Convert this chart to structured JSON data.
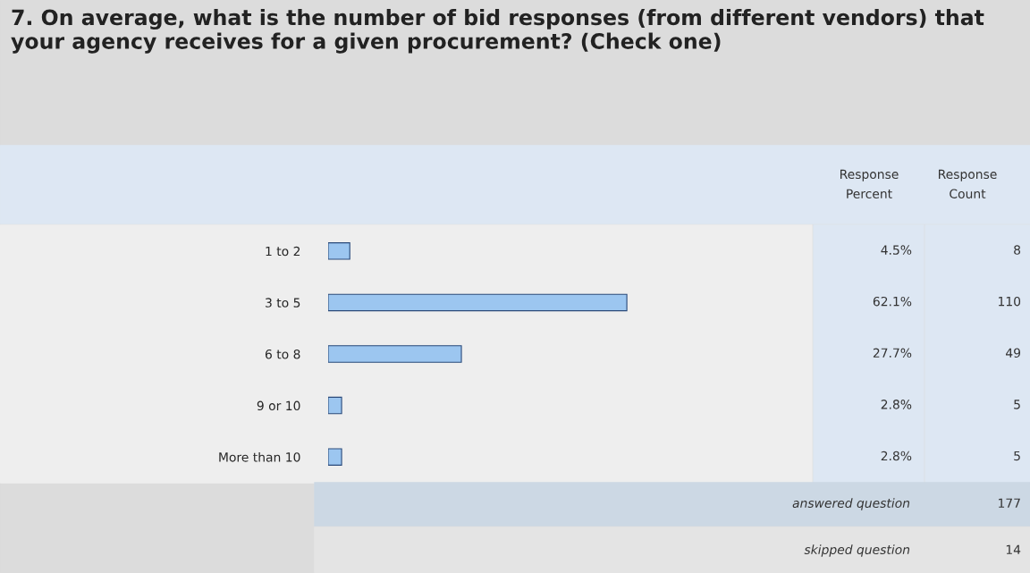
{
  "chart_data": {
    "type": "bar",
    "orientation": "horizontal",
    "title": "7. On average, what is the number of bid responses (from different vendors) that your agency receives for a given procurement? (Check one)",
    "categories": [
      "1 to 2",
      "3 to 5",
      "6 to 8",
      "9 or 10",
      "More than 10"
    ],
    "values": [
      4.5,
      62.1,
      27.7,
      2.8,
      2.8
    ],
    "value_labels": [
      "4.5%",
      "62.1%",
      "27.7%",
      "2.8%",
      "2.8%"
    ],
    "color": "#9cc6f0",
    "xlim": [
      0,
      100
    ],
    "tick_labels": "y",
    "annotations": [
      "Response\nPercent",
      "Response\nCount",
      "answered question",
      "177",
      "skipped question",
      "14",
      "8",
      "110",
      "49",
      "5",
      "5"
    ]
  }
}
